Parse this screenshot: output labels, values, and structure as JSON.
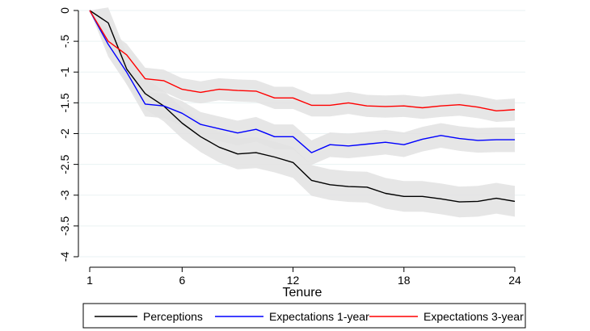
{
  "chart_data": {
    "type": "line",
    "title": "",
    "xlabel": "Tenure",
    "ylabel": "",
    "xlim": [
      1,
      24
    ],
    "ylim": [
      -4,
      0
    ],
    "xticks": [
      1,
      6,
      12,
      18,
      24
    ],
    "yticks": [
      0,
      -0.5,
      -1,
      -1.5,
      -2,
      -2.5,
      -3,
      -3.5,
      -4
    ],
    "ytick_labels": [
      "0",
      "-.5",
      "-1",
      "-1.5",
      "-2",
      "-2.5",
      "-3",
      "-3.5",
      "-4"
    ],
    "grid": "horizontal",
    "legend_position": "bottom",
    "band_color": "#e2e2e2",
    "x": [
      1,
      2,
      3,
      4,
      5,
      6,
      7,
      8,
      9,
      10,
      11,
      12,
      13,
      14,
      15,
      16,
      17,
      18,
      19,
      20,
      21,
      22,
      23,
      24
    ],
    "series": [
      {
        "name": "Perceptions",
        "color": "#000000",
        "values": [
          0,
          -0.2,
          -0.95,
          -1.35,
          -1.55,
          -1.83,
          -2.05,
          -2.22,
          -2.33,
          -2.31,
          -2.38,
          -2.47,
          -2.76,
          -2.83,
          -2.86,
          -2.87,
          -2.97,
          -3.02,
          -3.02,
          -3.06,
          -3.11,
          -3.1,
          -3.05,
          -3.1
        ],
        "band": 0.25
      },
      {
        "name": "Expectations 1-year",
        "color": "#0000ff",
        "values": [
          0,
          -0.55,
          -1.0,
          -1.52,
          -1.55,
          -1.67,
          -1.85,
          -1.92,
          -1.99,
          -1.93,
          -2.05,
          -2.05,
          -2.31,
          -2.18,
          -2.2,
          -2.17,
          -2.14,
          -2.18,
          -2.09,
          -2.03,
          -2.08,
          -2.11,
          -2.1,
          -2.1
        ],
        "band": 0.2
      },
      {
        "name": "Expectations 3-year",
        "color": "#ff0000",
        "values": [
          0,
          -0.5,
          -0.72,
          -1.11,
          -1.14,
          -1.28,
          -1.33,
          -1.28,
          -1.3,
          -1.31,
          -1.42,
          -1.42,
          -1.54,
          -1.54,
          -1.5,
          -1.55,
          -1.56,
          -1.55,
          -1.58,
          -1.55,
          -1.53,
          -1.57,
          -1.63,
          -1.61
        ],
        "band": 0.18
      }
    ]
  }
}
